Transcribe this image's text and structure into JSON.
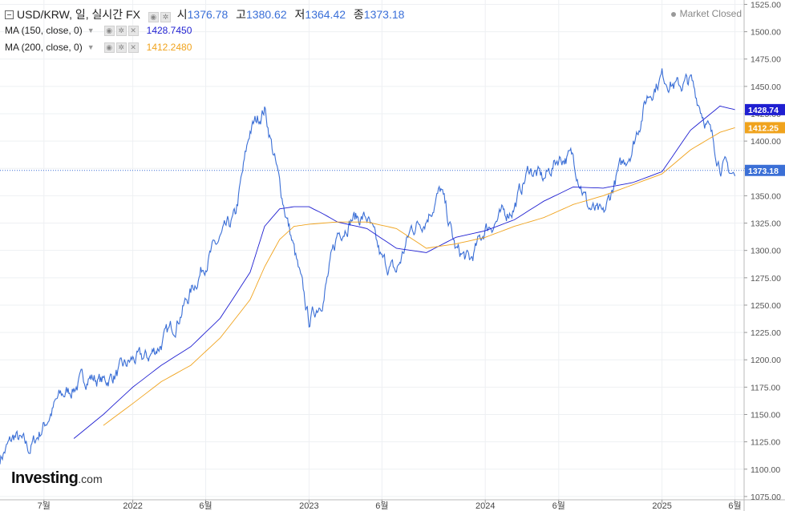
{
  "header": {
    "symbol": "USD/KRW, 일, 실시간 FX",
    "open_label": "시",
    "open": "1376.78",
    "high_label": "고",
    "high": "1380.62",
    "low_label": "저",
    "low": "1364.42",
    "close_label": "종",
    "close": "1373.18"
  },
  "indicators": [
    {
      "label": "MA (150, close, 0)",
      "value": "1428.7450",
      "color": "#1f1fd1"
    },
    {
      "label": "MA (200, close, 0)",
      "value": "1412.2480",
      "color": "#f0a31d"
    }
  ],
  "market_status": "Market Closed",
  "logo": {
    "main": "Investing",
    "suffix": ".com"
  },
  "chart_data": {
    "type": "line",
    "y_ticks": [
      "1525.00",
      "1500.00",
      "1475.00",
      "1450.00",
      "1425.00",
      "1400.00",
      "1375.00",
      "1350.00",
      "1325.00",
      "1300.00",
      "1275.00",
      "1250.00",
      "1225.00",
      "1200.00",
      "1175.00",
      "1150.00",
      "1125.00",
      "1100.00",
      "1075.00"
    ],
    "ylim": [
      1072,
      1529
    ],
    "x_tick_labels": [
      "7월",
      "2022",
      "6월",
      "2023",
      "6월",
      "2024",
      "6월",
      "2025",
      "6월"
    ],
    "x_tick_dates": [
      "2021-07",
      "2022-01",
      "2022-06",
      "2023-01",
      "2023-06",
      "2024-01",
      "2024-06",
      "2025-01",
      "2025-06"
    ],
    "xlim": [
      "2021-04",
      "2025-06-20"
    ],
    "grid": true,
    "last_price": "1373.18",
    "price_line_color": "#3b6fd6",
    "series": [
      {
        "color": "#3b6fd6",
        "x": [
          "2021-04",
          "2021-05",
          "2021-06",
          "2021-07",
          "2021-08",
          "2021-09",
          "2021-10",
          "2021-11",
          "2021-12",
          "2022-01",
          "2022-02",
          "2022-03",
          "2022-04",
          "2022-05",
          "2022-06",
          "2022-07",
          "2022-08",
          "2022-09",
          "2022-10",
          "2022-11",
          "2022-12",
          "2023-01",
          "2023-02",
          "2023-03",
          "2023-04",
          "2023-05",
          "2023-06",
          "2023-07",
          "2023-08",
          "2023-09",
          "2023-10",
          "2023-11",
          "2023-12",
          "2024-01",
          "2024-02",
          "2024-03",
          "2024-04",
          "2024-05",
          "2024-06",
          "2024-07",
          "2024-08",
          "2024-09",
          "2024-10",
          "2024-11",
          "2024-12",
          "2025-01",
          "2025-02",
          "2025-03",
          "2025-04",
          "2025-05",
          "2025-06"
        ],
        "y": [
          1110,
          1130,
          1118,
          1140,
          1165,
          1175,
          1185,
          1180,
          1188,
          1200,
          1202,
          1215,
          1235,
          1262,
          1290,
          1310,
          1330,
          1410,
          1430,
          1360,
          1300,
          1235,
          1260,
          1315,
          1330,
          1330,
          1290,
          1280,
          1320,
          1330,
          1355,
          1300,
          1290,
          1320,
          1330,
          1340,
          1375,
          1365,
          1385,
          1385,
          1340,
          1330,
          1370,
          1395,
          1440,
          1460,
          1450,
          1455,
          1420,
          1380,
          1368
        ]
      },
      {
        "name": "MA (150, close, 0)",
        "color": "#1f1fd1",
        "x": [
          "2021-09-01",
          "2021-11",
          "2022-01",
          "2022-03",
          "2022-05",
          "2022-07",
          "2022-09",
          "2022-10",
          "2022-11",
          "2022-12",
          "2023-01",
          "2023-02",
          "2023-03",
          "2023-05",
          "2023-07",
          "2023-09",
          "2023-11",
          "2024-01",
          "2024-03",
          "2024-05",
          "2024-07",
          "2024-09",
          "2024-11",
          "2025-01",
          "2025-03",
          "2025-05",
          "2025-06"
        ],
        "y": [
          1128,
          1150,
          1175,
          1195,
          1212,
          1238,
          1280,
          1322,
          1338,
          1340,
          1340,
          1333,
          1326,
          1320,
          1302,
          1298,
          1312,
          1318,
          1328,
          1345,
          1358,
          1357,
          1362,
          1372,
          1410,
          1432,
          1428.75
        ]
      },
      {
        "name": "MA (200, close, 0)",
        "color": "#f0a31d",
        "x": [
          "2021-11-01",
          "2022-01",
          "2022-03",
          "2022-05",
          "2022-07",
          "2022-09",
          "2022-10",
          "2022-11",
          "2022-12",
          "2023-01",
          "2023-03",
          "2023-05",
          "2023-07",
          "2023-09",
          "2023-11",
          "2024-01",
          "2024-03",
          "2024-05",
          "2024-07",
          "2024-09",
          "2024-11",
          "2025-01",
          "2025-03",
          "2025-05",
          "2025-06"
        ],
        "y": [
          1140,
          1160,
          1180,
          1195,
          1220,
          1255,
          1285,
          1310,
          1322,
          1324,
          1326,
          1326,
          1320,
          1302,
          1306,
          1312,
          1322,
          1330,
          1342,
          1350,
          1360,
          1370,
          1392,
          1408,
          1412.25
        ]
      }
    ]
  }
}
